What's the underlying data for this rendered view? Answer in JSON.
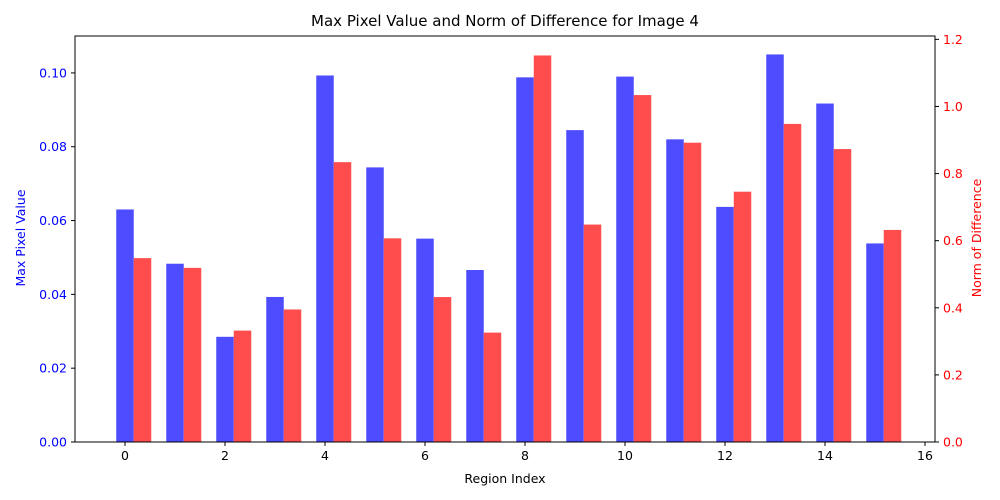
{
  "chart_data": {
    "type": "bar",
    "title": "Max Pixel Value and Norm of Difference for Image 4",
    "xlabel": "Region Index",
    "ylabel_left": "Max Pixel Value",
    "ylabel_right": "Norm of Difference",
    "x": [
      0,
      1,
      2,
      3,
      4,
      5,
      6,
      7,
      8,
      9,
      10,
      11,
      12,
      13,
      14,
      15
    ],
    "xlim": [
      -1,
      16.2
    ],
    "x_ticks": [
      0,
      2,
      4,
      6,
      8,
      10,
      12,
      14,
      16
    ],
    "ylim_left": [
      0,
      0.11
    ],
    "y_ticks_left": [
      0.0,
      0.02,
      0.04,
      0.06,
      0.08,
      0.1
    ],
    "y_tick_labels_left": [
      "0.00",
      "0.02",
      "0.04",
      "0.06",
      "0.08",
      "0.10"
    ],
    "ylim_right": [
      0,
      1.21
    ],
    "y_ticks_right": [
      0.0,
      0.2,
      0.4,
      0.6,
      0.8,
      1.0,
      1.2
    ],
    "y_tick_labels_right": [
      "0.0",
      "0.2",
      "0.4",
      "0.6",
      "0.8",
      "1.0",
      "1.2"
    ],
    "grid": false,
    "series": [
      {
        "axis": "left",
        "color": "#4d4dff",
        "values": [
          0.063,
          0.0483,
          0.0285,
          0.0393,
          0.0993,
          0.0744,
          0.0551,
          0.0466,
          0.0988,
          0.0845,
          0.099,
          0.082,
          0.0637,
          0.105,
          0.0917,
          0.0538
        ]
      },
      {
        "axis": "right",
        "color": "#ff4d4d",
        "values": [
          0.548,
          0.519,
          0.332,
          0.395,
          0.834,
          0.607,
          0.432,
          0.326,
          1.152,
          0.648,
          1.034,
          0.892,
          0.746,
          0.948,
          0.873,
          0.632
        ]
      }
    ],
    "colors": {
      "left_axis": "#0000ff",
      "right_axis": "#ff0000"
    }
  }
}
